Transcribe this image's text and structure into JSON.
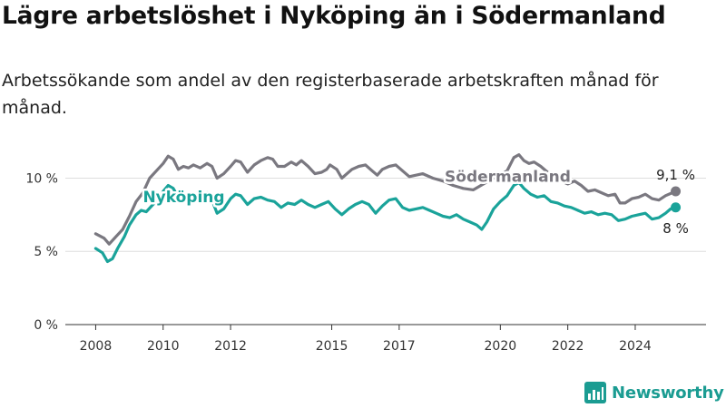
{
  "title": "Lägre arbetslöshet i Nyköping än i Södermanland",
  "subtitle": "Arbetssökande som andel av den registerbaserade arbetskraften månad för månad.",
  "brand": {
    "name": "Newsworthy",
    "color": "#1b9c92"
  },
  "chart_data": {
    "type": "line",
    "title": "Lägre arbetslöshet i Nyköping än i Södermanland",
    "subtitle": "Arbetssökande som andel av den registerbaserade arbetskraften månad för månad.",
    "xlabel": "",
    "ylabel": "",
    "x_range": [
      2007.1,
      2026.1
    ],
    "ylim": [
      0,
      10.4
    ],
    "y_ticks": [
      {
        "value": 0,
        "label": "0 %"
      },
      {
        "value": 5,
        "label": "5 %"
      },
      {
        "value": 10,
        "label": "10 %"
      }
    ],
    "x_ticks": [
      {
        "value": 2008,
        "label": "2008"
      },
      {
        "value": 2010,
        "label": "2010"
      },
      {
        "value": 2012,
        "label": "2012"
      },
      {
        "value": 2015,
        "label": "2015"
      },
      {
        "value": 2017,
        "label": "2017"
      },
      {
        "value": 2020,
        "label": "2020"
      },
      {
        "value": 2022,
        "label": "2022"
      },
      {
        "value": 2024,
        "label": "2024"
      }
    ],
    "grid": true,
    "series": [
      {
        "name": "Södermanland",
        "color": "#7a7880",
        "end_label": "9,1 %",
        "points": [
          [
            2008.0,
            6.2
          ],
          [
            2008.25,
            5.9
          ],
          [
            2008.4,
            5.5
          ],
          [
            2008.6,
            6.0
          ],
          [
            2008.8,
            6.5
          ],
          [
            2009.0,
            7.4
          ],
          [
            2009.2,
            8.4
          ],
          [
            2009.4,
            9.0
          ],
          [
            2009.6,
            10.0
          ],
          [
            2009.8,
            10.5
          ],
          [
            2010.0,
            11.0
          ],
          [
            2010.15,
            11.5
          ],
          [
            2010.3,
            11.3
          ],
          [
            2010.45,
            10.6
          ],
          [
            2010.6,
            10.8
          ],
          [
            2010.75,
            10.7
          ],
          [
            2010.9,
            10.9
          ],
          [
            2011.1,
            10.7
          ],
          [
            2011.3,
            11.0
          ],
          [
            2011.45,
            10.8
          ],
          [
            2011.6,
            10.0
          ],
          [
            2011.8,
            10.3
          ],
          [
            2012.0,
            10.8
          ],
          [
            2012.15,
            11.2
          ],
          [
            2012.3,
            11.1
          ],
          [
            2012.5,
            10.4
          ],
          [
            2012.7,
            10.9
          ],
          [
            2012.9,
            11.2
          ],
          [
            2013.1,
            11.4
          ],
          [
            2013.25,
            11.3
          ],
          [
            2013.4,
            10.8
          ],
          [
            2013.6,
            10.8
          ],
          [
            2013.8,
            11.1
          ],
          [
            2013.95,
            10.9
          ],
          [
            2014.1,
            11.2
          ],
          [
            2014.3,
            10.8
          ],
          [
            2014.5,
            10.3
          ],
          [
            2014.7,
            10.4
          ],
          [
            2014.85,
            10.6
          ],
          [
            2014.95,
            10.9
          ],
          [
            2015.15,
            10.6
          ],
          [
            2015.3,
            10.0
          ],
          [
            2015.45,
            10.3
          ],
          [
            2015.6,
            10.6
          ],
          [
            2015.8,
            10.8
          ],
          [
            2016.0,
            10.9
          ],
          [
            2016.2,
            10.5
          ],
          [
            2016.35,
            10.2
          ],
          [
            2016.5,
            10.6
          ],
          [
            2016.7,
            10.8
          ],
          [
            2016.9,
            10.9
          ],
          [
            2017.1,
            10.5
          ],
          [
            2017.3,
            10.1
          ],
          [
            2017.5,
            10.2
          ],
          [
            2017.7,
            10.3
          ],
          [
            2018.0,
            10.0
          ],
          [
            2018.3,
            9.8
          ],
          [
            2018.6,
            9.5
          ],
          [
            2018.9,
            9.3
          ],
          [
            2019.2,
            9.2
          ],
          [
            2019.5,
            9.6
          ],
          [
            2019.8,
            10.0
          ],
          [
            2020.0,
            10.2
          ],
          [
            2020.2,
            10.5
          ],
          [
            2020.4,
            11.4
          ],
          [
            2020.55,
            11.6
          ],
          [
            2020.7,
            11.2
          ],
          [
            2020.85,
            11.0
          ],
          [
            2021.0,
            11.1
          ],
          [
            2021.2,
            10.8
          ],
          [
            2021.4,
            10.4
          ],
          [
            2021.6,
            10.0
          ],
          [
            2021.8,
            9.8
          ],
          [
            2022.0,
            9.6
          ],
          [
            2022.2,
            9.8
          ],
          [
            2022.4,
            9.5
          ],
          [
            2022.6,
            9.1
          ],
          [
            2022.8,
            9.2
          ],
          [
            2023.0,
            9.0
          ],
          [
            2023.2,
            8.8
          ],
          [
            2023.4,
            8.9
          ],
          [
            2023.55,
            8.3
          ],
          [
            2023.7,
            8.3
          ],
          [
            2023.9,
            8.6
          ],
          [
            2024.1,
            8.7
          ],
          [
            2024.3,
            8.9
          ],
          [
            2024.5,
            8.6
          ],
          [
            2024.7,
            8.5
          ],
          [
            2024.9,
            8.8
          ],
          [
            2025.1,
            9.0
          ],
          [
            2025.2,
            9.1
          ]
        ]
      },
      {
        "name": "Nyköping",
        "color": "#1aa39a",
        "end_label": "8 %",
        "points": [
          [
            2008.0,
            5.2
          ],
          [
            2008.2,
            4.9
          ],
          [
            2008.35,
            4.3
          ],
          [
            2008.5,
            4.5
          ],
          [
            2008.65,
            5.2
          ],
          [
            2008.85,
            6.0
          ],
          [
            2009.0,
            6.8
          ],
          [
            2009.2,
            7.5
          ],
          [
            2009.35,
            7.8
          ],
          [
            2009.5,
            7.7
          ],
          [
            2009.7,
            8.2
          ],
          [
            2009.9,
            8.6
          ],
          [
            2010.0,
            9.1
          ],
          [
            2010.15,
            9.5
          ],
          [
            2010.3,
            9.3
          ],
          [
            2010.45,
            8.7
          ],
          [
            2010.6,
            8.5
          ],
          [
            2010.8,
            8.7
          ],
          [
            2011.0,
            8.9
          ],
          [
            2011.15,
            8.7
          ],
          [
            2011.3,
            9.0
          ],
          [
            2011.45,
            8.5
          ],
          [
            2011.6,
            7.6
          ],
          [
            2011.8,
            7.9
          ],
          [
            2012.0,
            8.6
          ],
          [
            2012.15,
            8.9
          ],
          [
            2012.3,
            8.8
          ],
          [
            2012.5,
            8.2
          ],
          [
            2012.7,
            8.6
          ],
          [
            2012.9,
            8.7
          ],
          [
            2013.1,
            8.5
          ],
          [
            2013.3,
            8.4
          ],
          [
            2013.5,
            8.0
          ],
          [
            2013.7,
            8.3
          ],
          [
            2013.9,
            8.2
          ],
          [
            2014.1,
            8.5
          ],
          [
            2014.3,
            8.2
          ],
          [
            2014.5,
            8.0
          ],
          [
            2014.7,
            8.2
          ],
          [
            2014.9,
            8.4
          ],
          [
            2015.1,
            7.9
          ],
          [
            2015.3,
            7.5
          ],
          [
            2015.5,
            7.9
          ],
          [
            2015.7,
            8.2
          ],
          [
            2015.9,
            8.4
          ],
          [
            2016.1,
            8.2
          ],
          [
            2016.3,
            7.6
          ],
          [
            2016.5,
            8.1
          ],
          [
            2016.7,
            8.5
          ],
          [
            2016.9,
            8.6
          ],
          [
            2017.1,
            8.0
          ],
          [
            2017.3,
            7.8
          ],
          [
            2017.5,
            7.9
          ],
          [
            2017.7,
            8.0
          ],
          [
            2017.9,
            7.8
          ],
          [
            2018.1,
            7.6
          ],
          [
            2018.3,
            7.4
          ],
          [
            2018.5,
            7.3
          ],
          [
            2018.7,
            7.5
          ],
          [
            2018.9,
            7.2
          ],
          [
            2019.1,
            7.0
          ],
          [
            2019.3,
            6.8
          ],
          [
            2019.45,
            6.5
          ],
          [
            2019.6,
            7.0
          ],
          [
            2019.8,
            7.9
          ],
          [
            2020.0,
            8.4
          ],
          [
            2020.2,
            8.8
          ],
          [
            2020.4,
            9.5
          ],
          [
            2020.55,
            9.7
          ],
          [
            2020.7,
            9.3
          ],
          [
            2020.9,
            8.9
          ],
          [
            2021.1,
            8.7
          ],
          [
            2021.3,
            8.8
          ],
          [
            2021.5,
            8.4
          ],
          [
            2021.7,
            8.3
          ],
          [
            2021.9,
            8.1
          ],
          [
            2022.1,
            8.0
          ],
          [
            2022.3,
            7.8
          ],
          [
            2022.5,
            7.6
          ],
          [
            2022.7,
            7.7
          ],
          [
            2022.9,
            7.5
          ],
          [
            2023.1,
            7.6
          ],
          [
            2023.3,
            7.5
          ],
          [
            2023.5,
            7.1
          ],
          [
            2023.7,
            7.2
          ],
          [
            2023.9,
            7.4
          ],
          [
            2024.1,
            7.5
          ],
          [
            2024.3,
            7.6
          ],
          [
            2024.5,
            7.2
          ],
          [
            2024.7,
            7.3
          ],
          [
            2024.9,
            7.6
          ],
          [
            2025.05,
            7.9
          ],
          [
            2025.2,
            8.0
          ]
        ]
      }
    ],
    "annotations": [
      {
        "text": "Nyköping",
        "series": "Nyköping",
        "x": 2009.4,
        "y": 8.35
      },
      {
        "text": "Södermanland",
        "series": "Södermanland",
        "x": 2018.35,
        "y": 9.75
      }
    ]
  }
}
